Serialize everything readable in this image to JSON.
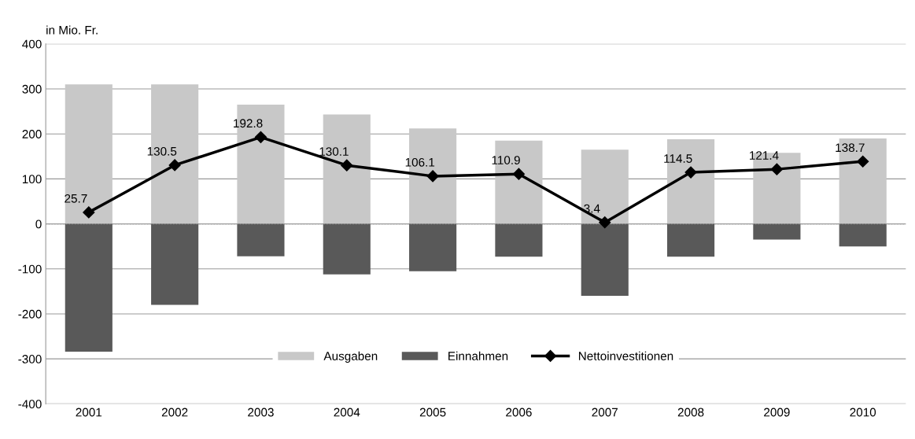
{
  "chart_data": {
    "type": "bar",
    "ylabel": "in Mio. Fr.",
    "categories": [
      "2001",
      "2002",
      "2003",
      "2004",
      "2005",
      "2006",
      "2007",
      "2008",
      "2009",
      "2010"
    ],
    "series": [
      {
        "name": "Ausgaben",
        "color": "#c8c8c8",
        "values": [
          310,
          310,
          265,
          243,
          212,
          185,
          165,
          188,
          158,
          190
        ]
      },
      {
        "name": "Einnahmen",
        "color": "#595959",
        "values": [
          -284,
          -180,
          -72,
          -112,
          -105,
          -73,
          -160,
          -73,
          -35,
          -50
        ]
      },
      {
        "name": "Nettoinvestitionen",
        "type": "line",
        "color": "#000000",
        "marker": "diamond",
        "values": [
          25.7,
          130.5,
          192.8,
          130.1,
          106.1,
          110.9,
          3.4,
          114.5,
          121.4,
          138.7
        ],
        "value_labels": [
          "25.7",
          "130.5",
          "192.8",
          "130.1",
          "106.1",
          "110.9",
          "3.4",
          "114.5",
          "121.4",
          "138.7"
        ]
      }
    ],
    "ylim": [
      -400,
      400
    ],
    "yticks": [
      -400,
      -300,
      -200,
      -100,
      0,
      100,
      200,
      300,
      400
    ],
    "stacked": true,
    "ref_lines": [
      {
        "axis": "y",
        "value": 0,
        "color": "#999999",
        "line_style": "dotted"
      }
    ],
    "grid": "y",
    "legend": "bottom"
  }
}
